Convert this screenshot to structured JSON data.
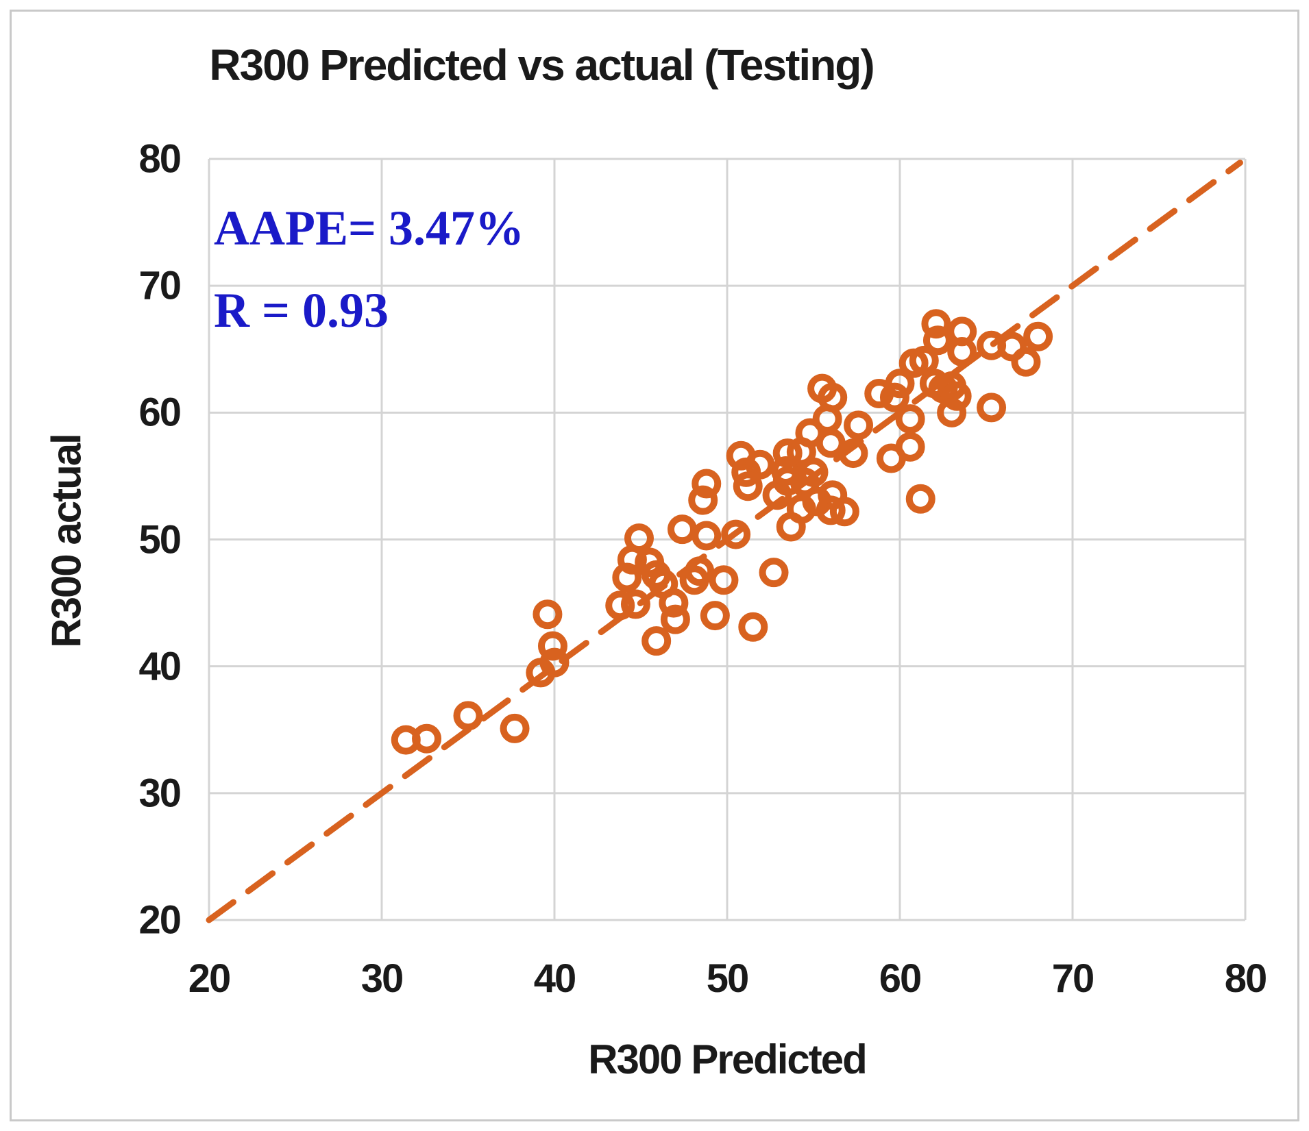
{
  "chart_data": {
    "type": "scatter",
    "title": "R300 Predicted vs actual (Testing)",
    "xlabel": "R300 Predicted",
    "ylabel": "R300 actual",
    "xlim": [
      20,
      80
    ],
    "ylim": [
      20,
      80
    ],
    "x_ticks": [
      20,
      30,
      40,
      50,
      60,
      70,
      80
    ],
    "y_ticks": [
      20,
      30,
      40,
      50,
      60,
      70,
      80
    ],
    "grid": true,
    "grid_color": "#d4d4d4",
    "marker": {
      "shape": "open-circle",
      "color": "#d8621f",
      "stroke_px": 10,
      "radius_px": 16.5
    },
    "identity_line": {
      "from": [
        20,
        20
      ],
      "to": [
        79.7,
        79.7
      ],
      "style": "dashed",
      "color": "#d8621f",
      "stroke_px": 9,
      "dash_px": "44 27"
    },
    "annotations": [
      {
        "id": "aape",
        "text": "AAPE= 3.47%",
        "color": "#1a1ac8"
      },
      {
        "id": "r",
        "text": "R = 0.93",
        "color": "#1a1ac8"
      }
    ],
    "points": [
      [
        31.4,
        34.2
      ],
      [
        32.6,
        34.3
      ],
      [
        35.0,
        36.1
      ],
      [
        37.7,
        35.1
      ],
      [
        39.2,
        39.5
      ],
      [
        40.0,
        40.3
      ],
      [
        39.9,
        41.6
      ],
      [
        39.6,
        44.1
      ],
      [
        43.8,
        44.8
      ],
      [
        44.7,
        44.9
      ],
      [
        44.2,
        47.0
      ],
      [
        44.5,
        48.4
      ],
      [
        44.9,
        50.1
      ],
      [
        45.5,
        48.2
      ],
      [
        45.9,
        47.2
      ],
      [
        46.3,
        46.5
      ],
      [
        46.9,
        45.0
      ],
      [
        45.9,
        42.0
      ],
      [
        47.0,
        43.7
      ],
      [
        48.1,
        46.8
      ],
      [
        48.4,
        47.5
      ],
      [
        49.8,
        46.8
      ],
      [
        49.3,
        44.0
      ],
      [
        51.5,
        43.1
      ],
      [
        47.4,
        50.8
      ],
      [
        48.8,
        50.3
      ],
      [
        48.6,
        53.1
      ],
      [
        48.8,
        54.4
      ],
      [
        50.5,
        50.4
      ],
      [
        50.8,
        56.6
      ],
      [
        51.1,
        55.3
      ],
      [
        51.9,
        55.9
      ],
      [
        51.2,
        54.2
      ],
      [
        52.9,
        53.5
      ],
      [
        53.5,
        54.6
      ],
      [
        53.4,
        55.4
      ],
      [
        53.7,
        51.0
      ],
      [
        54.3,
        52.4
      ],
      [
        54.5,
        54.5
      ],
      [
        55.0,
        55.3
      ],
      [
        55.2,
        53.0
      ],
      [
        56.1,
        53.5
      ],
      [
        56.0,
        52.3
      ],
      [
        56.8,
        52.2
      ],
      [
        54.8,
        58.4
      ],
      [
        55.8,
        59.5
      ],
      [
        55.5,
        61.9
      ],
      [
        56.1,
        61.2
      ],
      [
        56.0,
        57.6
      ],
      [
        57.3,
        56.8
      ],
      [
        57.6,
        59.0
      ],
      [
        54.3,
        56.9
      ],
      [
        53.5,
        56.8
      ],
      [
        58.8,
        61.5
      ],
      [
        59.7,
        61.2
      ],
      [
        59.5,
        56.4
      ],
      [
        60.6,
        57.3
      ],
      [
        60.6,
        59.5
      ],
      [
        52.7,
        47.4
      ],
      [
        61.2,
        53.2
      ],
      [
        60.0,
        62.3
      ],
      [
        60.8,
        63.9
      ],
      [
        61.4,
        64.1
      ],
      [
        62.0,
        62.3
      ],
      [
        62.5,
        61.9
      ],
      [
        63.0,
        62.1
      ],
      [
        63.3,
        61.3
      ],
      [
        62.1,
        67.0
      ],
      [
        62.2,
        65.7
      ],
      [
        63.6,
        66.4
      ],
      [
        63.6,
        64.8
      ],
      [
        65.3,
        65.3
      ],
      [
        66.5,
        65.2
      ],
      [
        68.0,
        66.0
      ],
      [
        67.3,
        64.0
      ],
      [
        63.0,
        60.0
      ],
      [
        65.3,
        60.4
      ]
    ]
  }
}
